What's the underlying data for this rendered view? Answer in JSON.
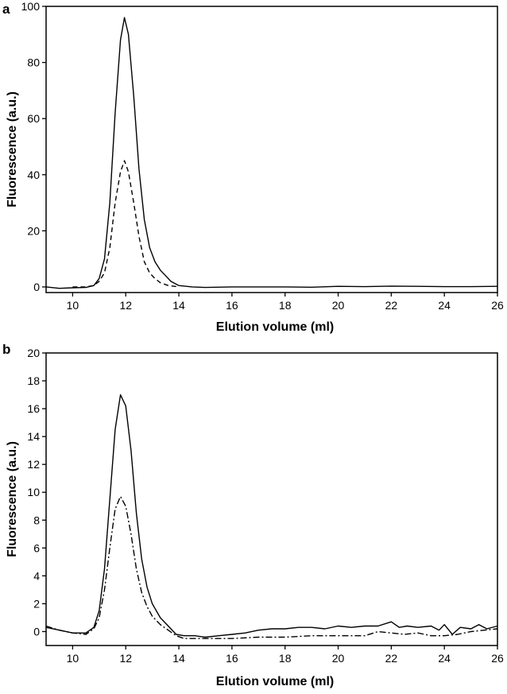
{
  "chart_data": [
    {
      "panel_label": "a",
      "type": "line",
      "xlabel": "Elution volume (ml)",
      "ylabel": "Fluorescence (a.u.)",
      "xlim": [
        9,
        26
      ],
      "ylim": [
        -2,
        100
      ],
      "xticks": [
        10,
        12,
        14,
        16,
        18,
        20,
        22,
        24,
        26
      ],
      "yticks": [
        0,
        20,
        40,
        60,
        80,
        100
      ],
      "grid": false,
      "series": [
        {
          "line_style": "solid",
          "color": "#000000",
          "x": [
            9.0,
            9.5,
            10.0,
            10.5,
            10.8,
            11.0,
            11.2,
            11.4,
            11.6,
            11.8,
            11.95,
            12.1,
            12.3,
            12.5,
            12.7,
            12.9,
            13.1,
            13.3,
            13.5,
            13.7,
            14.0,
            14.5,
            15,
            16,
            17,
            18,
            19,
            20,
            21,
            22,
            23,
            24,
            25,
            26
          ],
          "y": [
            0,
            -0.5,
            -0.3,
            -0.2,
            0.5,
            3,
            10,
            30,
            62,
            88,
            96,
            90,
            68,
            42,
            24,
            14,
            9,
            6,
            4,
            2,
            0.5,
            0,
            -0.2,
            0,
            0,
            0,
            -0.1,
            0.2,
            0.1,
            0.3,
            0.2,
            0.1,
            0.1,
            0.2
          ]
        },
        {
          "line_style": "dashed",
          "color": "#000000",
          "x": [
            10.0,
            10.5,
            10.8,
            11.0,
            11.2,
            11.4,
            11.6,
            11.8,
            11.95,
            12.1,
            12.3,
            12.5,
            12.7,
            12.9,
            13.1,
            13.3,
            13.6,
            14.0
          ],
          "y": [
            0,
            0,
            0.5,
            2,
            5,
            14,
            30,
            41,
            45,
            41,
            30,
            18,
            9,
            5,
            3,
            1.5,
            0.5,
            0
          ]
        }
      ]
    },
    {
      "panel_label": "b",
      "type": "line",
      "xlabel": "Elution volume (ml)",
      "ylabel": "Fluorescence (a.u.)",
      "xlim": [
        9,
        26
      ],
      "ylim": [
        -1,
        20
      ],
      "xticks": [
        10,
        12,
        14,
        16,
        18,
        20,
        22,
        24,
        26
      ],
      "yticks": [
        0,
        2,
        4,
        6,
        8,
        10,
        12,
        14,
        16,
        18,
        20
      ],
      "grid": false,
      "series": [
        {
          "line_style": "solid",
          "color": "#000000",
          "x": [
            9.0,
            9.5,
            10.0,
            10.5,
            10.8,
            11.0,
            11.2,
            11.4,
            11.6,
            11.8,
            12.0,
            12.2,
            12.4,
            12.6,
            12.8,
            13.0,
            13.3,
            13.6,
            13.9,
            14.2,
            14.6,
            15,
            15.5,
            16,
            16.5,
            17,
            17.5,
            18,
            18.5,
            19,
            19.5,
            20,
            20.5,
            21,
            21.5,
            22,
            22.3,
            22.6,
            23,
            23.5,
            23.8,
            24,
            24.3,
            24.6,
            25,
            25.3,
            25.6,
            26
          ],
          "y": [
            0.3,
            0.1,
            -0.1,
            -0.1,
            0.3,
            1.5,
            4.5,
            9.5,
            14.5,
            17.0,
            16.2,
            13.0,
            8.5,
            5.2,
            3.2,
            2.0,
            1.0,
            0.4,
            -0.2,
            -0.3,
            -0.3,
            -0.4,
            -0.3,
            -0.2,
            -0.1,
            0.1,
            0.2,
            0.2,
            0.3,
            0.3,
            0.2,
            0.4,
            0.3,
            0.4,
            0.4,
            0.7,
            0.3,
            0.4,
            0.3,
            0.4,
            0.1,
            0.5,
            -0.2,
            0.3,
            0.2,
            0.5,
            0.2,
            0.4
          ]
        },
        {
          "line_style": "dash-dot",
          "color": "#000000",
          "x": [
            9.0,
            9.5,
            10.0,
            10.5,
            10.8,
            11.0,
            11.2,
            11.4,
            11.6,
            11.8,
            12.0,
            12.2,
            12.4,
            12.6,
            12.8,
            13.0,
            13.3,
            13.6,
            13.9,
            14.2,
            15,
            16,
            17,
            18,
            19,
            20,
            21,
            21.5,
            22,
            22.5,
            23,
            23.5,
            24,
            24.5,
            25,
            25.5,
            26
          ],
          "y": [
            0.4,
            0.1,
            -0.1,
            -0.2,
            0.2,
            1.0,
            3.0,
            6.0,
            8.8,
            9.7,
            9.0,
            7.0,
            4.5,
            2.8,
            1.8,
            1.1,
            0.5,
            0.1,
            -0.3,
            -0.5,
            -0.5,
            -0.5,
            -0.4,
            -0.4,
            -0.3,
            -0.3,
            -0.3,
            0.0,
            -0.1,
            -0.2,
            -0.1,
            -0.3,
            -0.3,
            -0.2,
            0.0,
            0.1,
            0.2
          ]
        }
      ]
    }
  ]
}
